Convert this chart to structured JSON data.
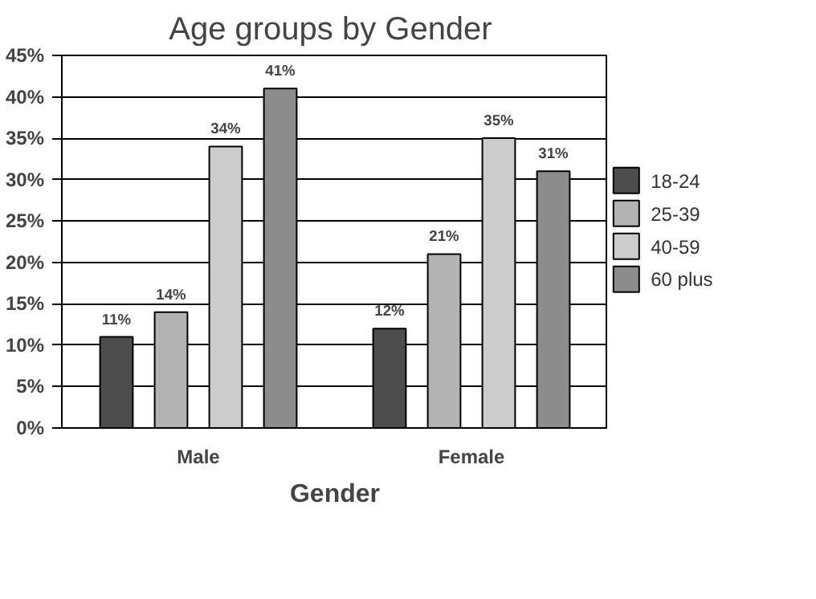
{
  "chart_data": {
    "type": "bar",
    "title": "Age groups  by Gender",
    "xlabel": "Gender",
    "categories": [
      "Male",
      "Female"
    ],
    "series": [
      {
        "name": "18-24",
        "color": "#4d4d4d",
        "values": [
          11,
          12
        ],
        "value_labels": [
          "11%",
          "12%"
        ]
      },
      {
        "name": "25-39",
        "color": "#b3b3b3",
        "values": [
          14,
          21
        ],
        "value_labels": [
          "14%",
          "21%"
        ]
      },
      {
        "name": "40-59",
        "color": "#cccccc",
        "values": [
          34,
          35
        ],
        "value_labels": [
          "34%",
          "35%"
        ]
      },
      {
        "name": "60 plus",
        "color": "#8c8c8c",
        "values": [
          41,
          31
        ],
        "value_labels": [
          "41%",
          "31%"
        ]
      }
    ],
    "ylim": [
      0,
      45
    ],
    "yticks": [
      {
        "value": 0,
        "label": "0%"
      },
      {
        "value": 5,
        "label": "5%"
      },
      {
        "value": 10,
        "label": "10%"
      },
      {
        "value": 15,
        "label": "15%"
      },
      {
        "value": 20,
        "label": "20%"
      },
      {
        "value": 25,
        "label": "25%"
      },
      {
        "value": 30,
        "label": "30%"
      },
      {
        "value": 35,
        "label": "35%"
      },
      {
        "value": 40,
        "label": "40%"
      },
      {
        "value": 45,
        "label": "45%"
      }
    ],
    "grid": "y",
    "legend": "right"
  }
}
